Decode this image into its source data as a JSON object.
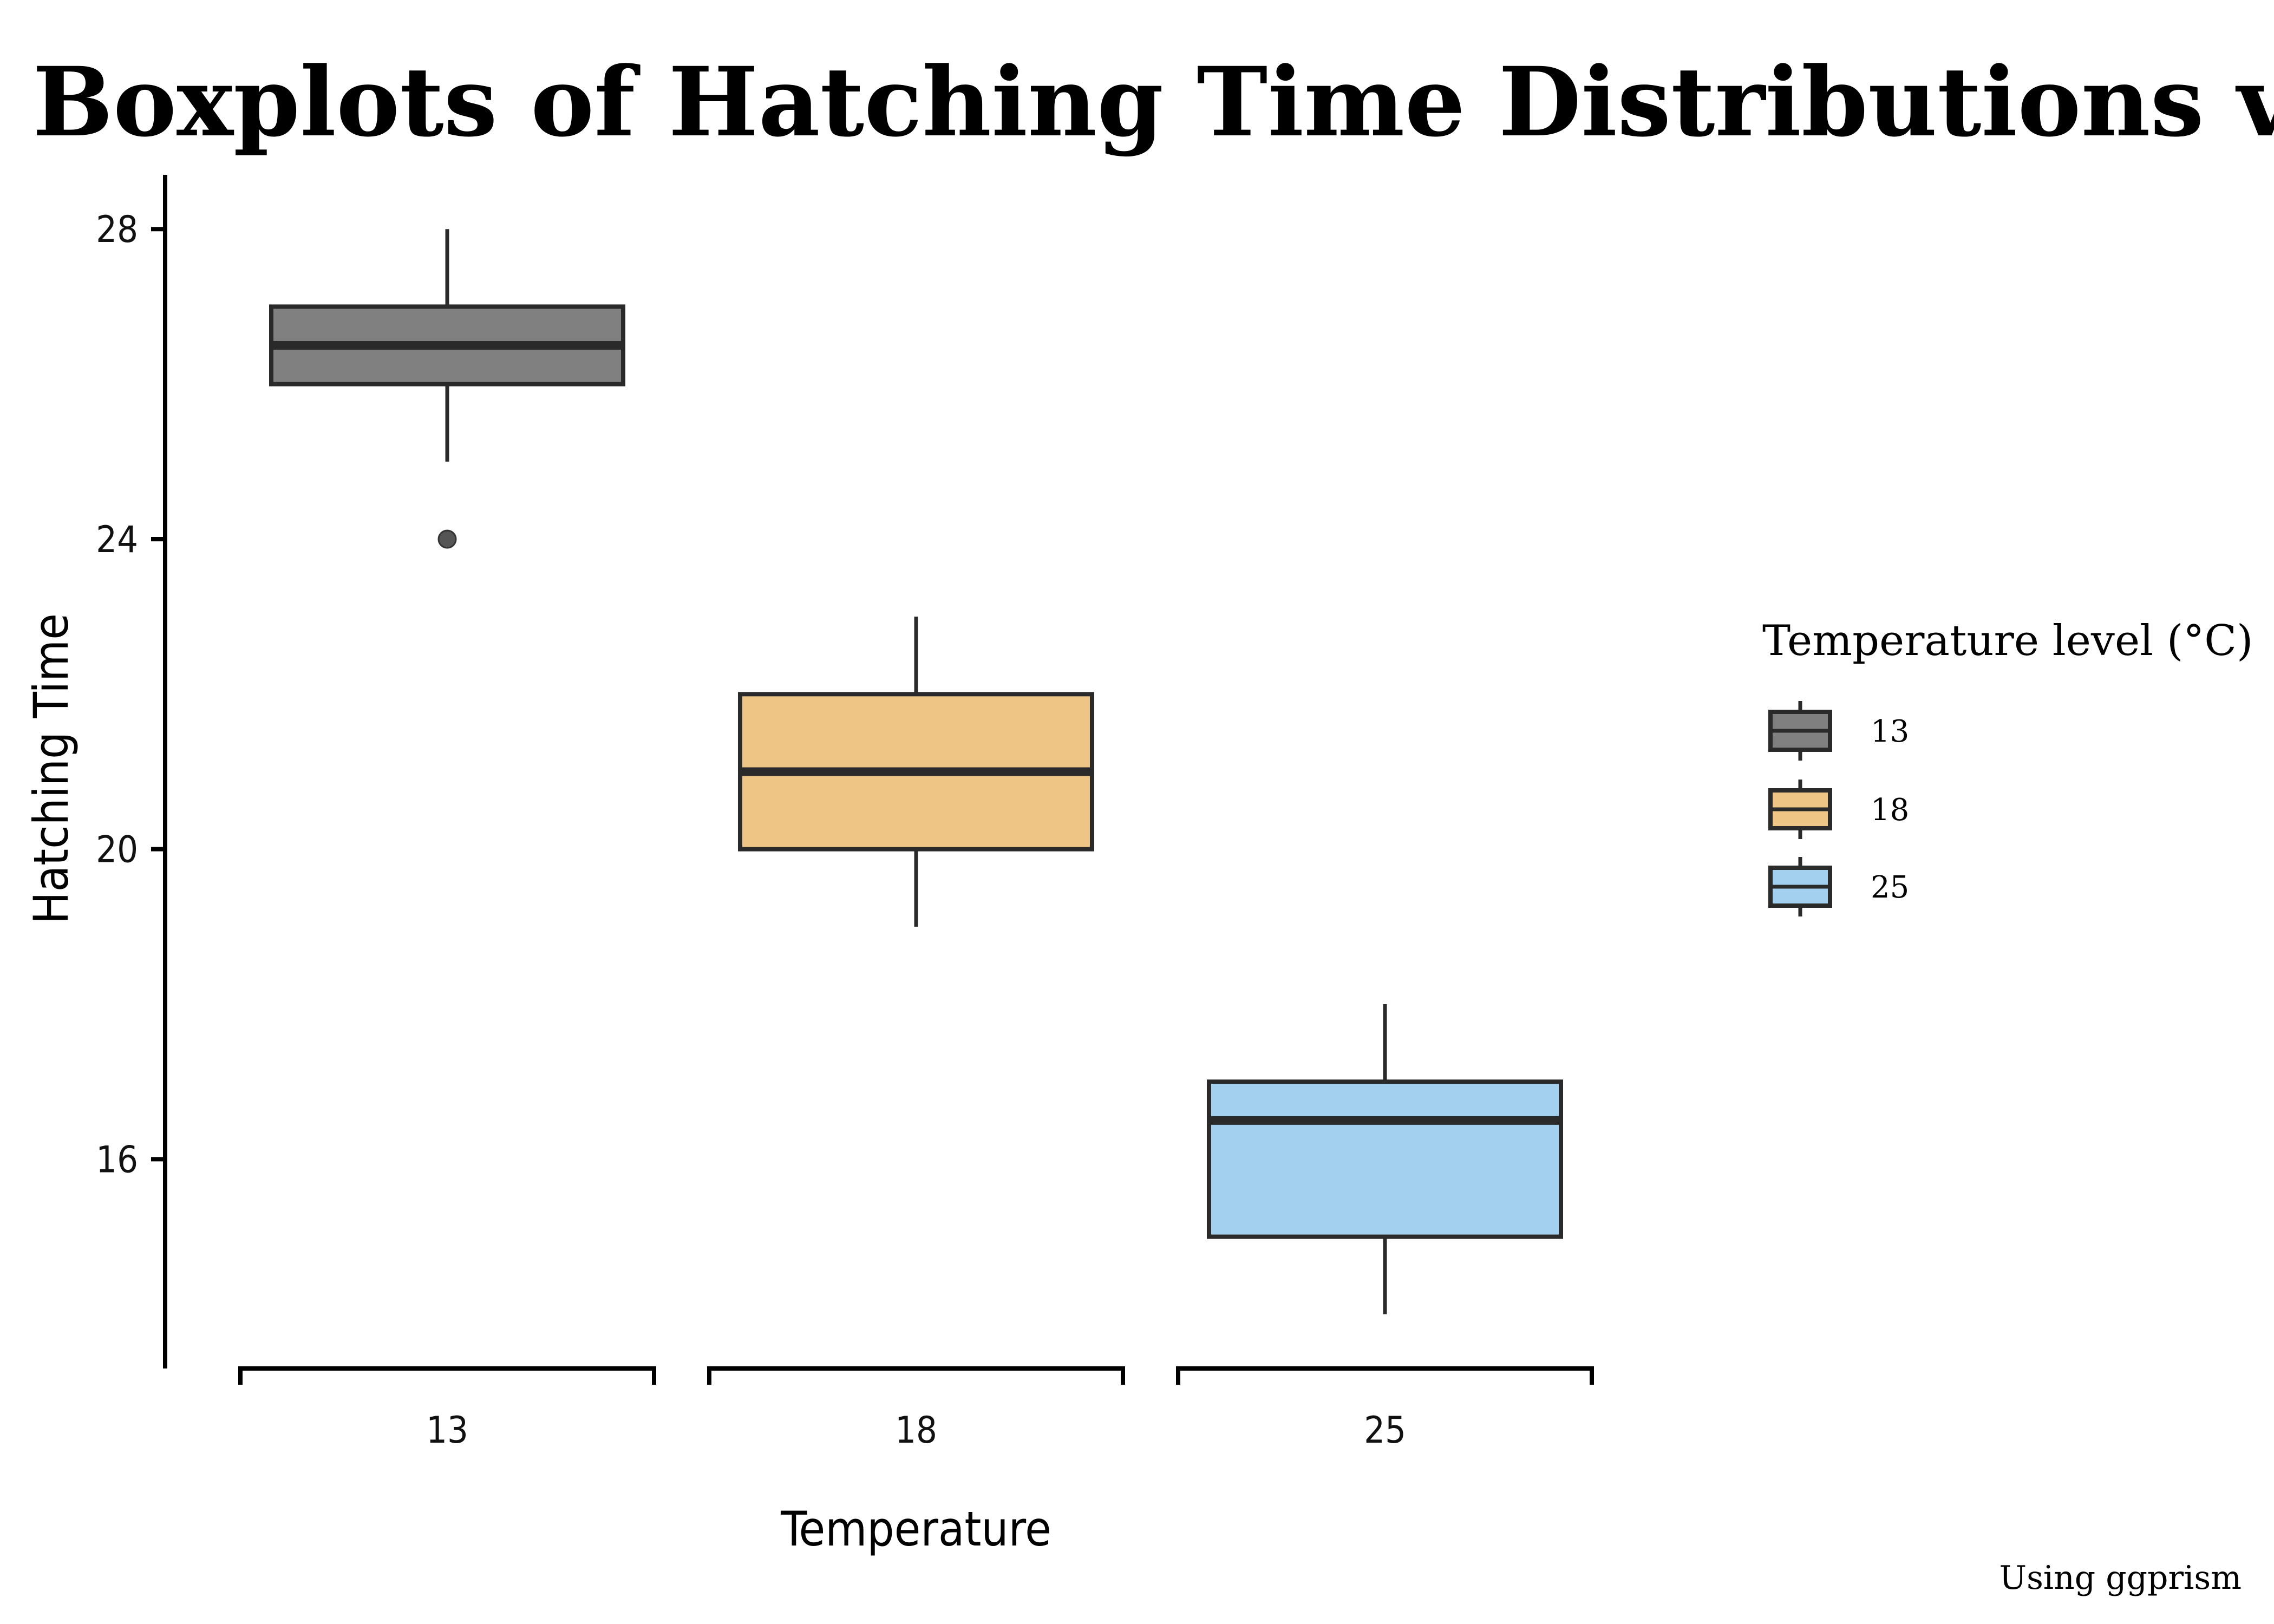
{
  "chart_data": {
    "type": "boxplot",
    "title": "Boxplots of Hatching Time Distributions vs Temperature",
    "xlabel": "Temperature",
    "ylabel": "Hatching Time",
    "categories": [
      "13",
      "18",
      "25"
    ],
    "yticks": [
      16,
      20,
      24,
      28
    ],
    "ylim": [
      13.3,
      28.7
    ],
    "boxes": [
      {
        "category": "13",
        "fill": "#808080",
        "whisker_low": 25,
        "q1": 26,
        "median": 26.5,
        "q3": 27,
        "whisker_high": 28,
        "outliers": [
          24
        ]
      },
      {
        "category": "18",
        "fill": "#EEC584",
        "whisker_low": 19,
        "q1": 20,
        "median": 21,
        "q3": 22,
        "whisker_high": 23,
        "outliers": []
      },
      {
        "category": "25",
        "fill": "#A4D0F0",
        "whisker_low": 14,
        "q1": 15,
        "median": 16.5,
        "q3": 17,
        "whisker_high": 18,
        "outliers": []
      }
    ],
    "legend": {
      "title": "Temperature level (°C)",
      "entries": [
        "13",
        "18",
        "25"
      ],
      "position": "right"
    },
    "caption": "Using ggprism",
    "grid": false
  },
  "colors": {
    "outline": "#2a2a2a",
    "axis": "#000000",
    "outlier": "#555555"
  }
}
